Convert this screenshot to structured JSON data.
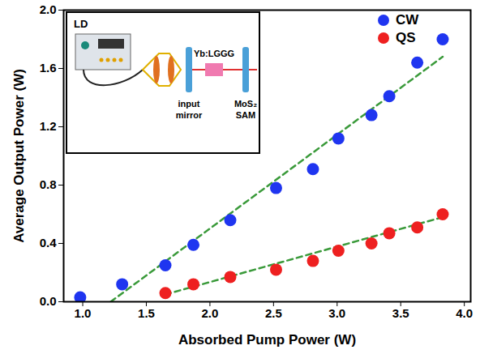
{
  "chart_data": {
    "type": "scatter",
    "x_label": "Absorbed Pump Power (W)",
    "y_label": "Average Output Power (W)",
    "xlim": [
      0.85,
      4.05
    ],
    "ylim": [
      0,
      2.0
    ],
    "xticks": [
      {
        "value": 1,
        "label": "1.0"
      },
      {
        "value": 1.5,
        "label": "1.5"
      },
      {
        "value": 2,
        "label": "2.0"
      },
      {
        "value": 2.5,
        "label": "2.5"
      },
      {
        "value": 3,
        "label": "3.0"
      },
      {
        "value": 3.5,
        "label": "3.5"
      },
      {
        "value": 4,
        "label": "4.0"
      }
    ],
    "yticks": [
      {
        "value": 0,
        "label": "0.0"
      },
      {
        "value": 0.4,
        "label": "0.4"
      },
      {
        "value": 0.8,
        "label": "0.8"
      },
      {
        "value": 1.2,
        "label": "1.2"
      },
      {
        "value": 1.6,
        "label": "1.6"
      },
      {
        "value": 2,
        "label": "2.0"
      }
    ],
    "legend": "top-right",
    "series": [
      {
        "name": "CW",
        "color": "#1f35f0",
        "marker": "circle",
        "x": [
          0.98,
          1.31,
          1.65,
          1.87,
          2.16,
          2.52,
          2.81,
          3.01,
          3.27,
          3.41,
          3.63,
          3.83
        ],
        "values": [
          0.03,
          0.12,
          0.25,
          0.39,
          0.56,
          0.78,
          0.91,
          1.12,
          1.28,
          1.41,
          1.64,
          1.8
        ],
        "fit": {
          "x": [
            1.22,
            3.83
          ],
          "values": [
            0,
            1.68
          ],
          "color": "#3a9a3a",
          "line_style": "dashed"
        }
      },
      {
        "name": "QS",
        "color": "#ee2020",
        "marker": "circle",
        "x": [
          1.65,
          1.87,
          2.16,
          2.52,
          2.81,
          3.01,
          3.27,
          3.41,
          3.63,
          3.83
        ],
        "values": [
          0.06,
          0.12,
          0.17,
          0.22,
          0.28,
          0.35,
          0.4,
          0.47,
          0.51,
          0.6
        ],
        "fit": {
          "x": [
            1.65,
            3.83
          ],
          "values": [
            0.05,
            0.58
          ],
          "color": "#3a9a3a",
          "line_style": "dashed"
        }
      }
    ],
    "annotations": [
      "LD",
      "input mirror",
      "Yb:LGGG",
      "MoS₂ SAM"
    ]
  }
}
